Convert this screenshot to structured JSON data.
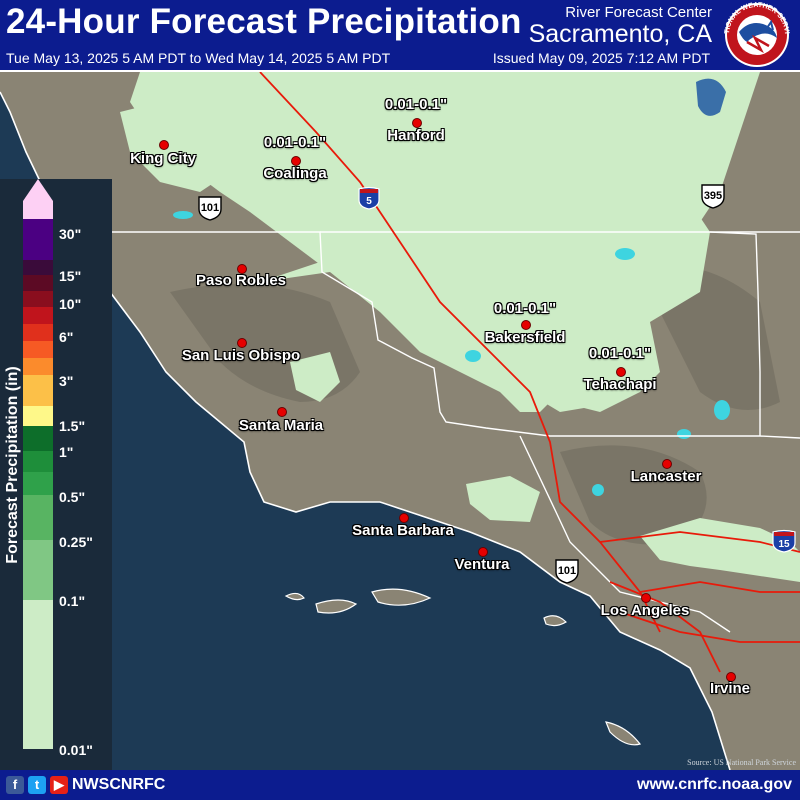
{
  "header": {
    "title": "24-Hour Forecast Precipitation",
    "rfc_name": "River Forecast Center",
    "rfc_location": "Sacramento, CA",
    "period": "Tue May 13, 2025 5 AM PDT to Wed May 14, 2025 5 AM PDT",
    "issued": "Issued May 09, 2025 7:12 AM PDT",
    "logo_text": "NATIONAL WEATHER SERVICE"
  },
  "legend": {
    "title": "Forecast Precipitation (in)",
    "ticks": [
      "30\"",
      "15\"",
      "10\"",
      "6\"",
      "3\"",
      "1.5\"",
      "1\"",
      "0.5\"",
      "0.25\"",
      "0.1\"",
      "0.01\""
    ],
    "colors": {
      "over_max": "#fdd0f4",
      "30": "#4b0082",
      "20": "#3a0b3a",
      "15": "#5c0a24",
      "10": "#8a0e1e",
      "8": "#c0141c",
      "6": "#e0301c",
      "4": "#f65a24",
      "3": "#fb8b2c",
      "2": "#fcc048",
      "1.5": "#fef889",
      "1.25": "#0d6e2a",
      "1": "#1e8e3a",
      "0.75": "#2fa14a",
      "0.5": "#58b462",
      "0.25": "#80c784",
      "0.1": "#a7dba5",
      "0.01": "#cdecc6"
    }
  },
  "map": {
    "ocean_color": "#1d3a55",
    "land_color": "#8a8474",
    "qpf_light_color": "#cdecc6",
    "cities": [
      {
        "name": "King City",
        "label": "King City"
      },
      {
        "name": "Coalinga",
        "label": "Coalinga"
      },
      {
        "name": "Hanford",
        "label": "Hanford"
      },
      {
        "name": "Paso Robles",
        "label": "Paso Robles"
      },
      {
        "name": "San Luis Obispo",
        "label": "San Luis Obispo"
      },
      {
        "name": "Santa Maria",
        "label": "Santa Maria"
      },
      {
        "name": "Bakersfield",
        "label": "Bakersfield"
      },
      {
        "name": "Tehachapi",
        "label": "Tehachapi"
      },
      {
        "name": "Lancaster",
        "label": "Lancaster"
      },
      {
        "name": "Santa Barbara",
        "label": "Santa Barbara"
      },
      {
        "name": "Ventura",
        "label": "Ventura"
      },
      {
        "name": "Los Angeles",
        "label": "Los Angeles"
      },
      {
        "name": "Irvine",
        "label": "Irvine"
      }
    ],
    "qpf_labels": [
      "0.01-0.1\"",
      "0.01-0.1\"",
      "0.01-0.1\"",
      "0.01-0.1\""
    ],
    "highways": {
      "us101_a": "101",
      "us101_b": "101",
      "us395": "395",
      "i5": "5",
      "i15": "15"
    },
    "source": "Source: US National Park Service"
  },
  "footer": {
    "handle": "NWSCNRFC",
    "website": "www.cnrfc.noaa.gov",
    "icons": [
      "facebook-icon",
      "twitter-icon",
      "youtube-icon"
    ]
  }
}
